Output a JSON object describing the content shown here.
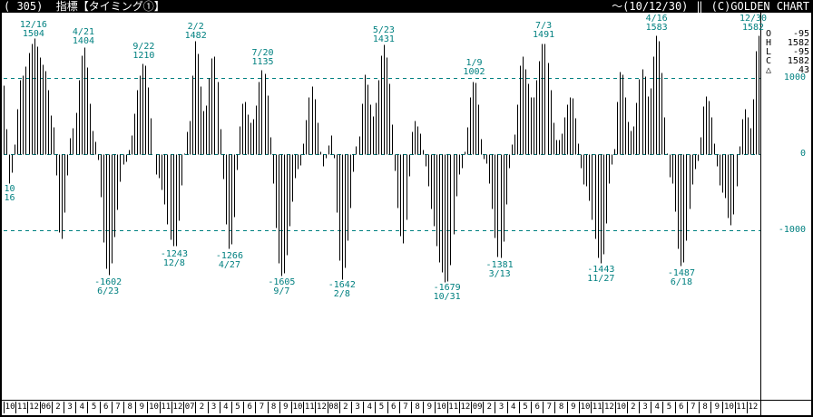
{
  "colors": {
    "accent": "#008080",
    "bars": "#000000",
    "background": "#ffffff",
    "titlebar_bg": "#000000",
    "titlebar_fg": "#ffffff"
  },
  "titlebar": {
    "left": "( 305)  指標【タイミング①】",
    "range": "～(10/12/30)",
    "separator": "‖",
    "copyright": "(C)GOLDEN CHART"
  },
  "legend": {
    "rows": [
      {
        "label": "O",
        "value": "-95"
      },
      {
        "label": "H",
        "value": "1582"
      },
      {
        "label": "L",
        "value": "-95"
      },
      {
        "label": "C",
        "value": "1582"
      },
      {
        "label": "△",
        "value": "43"
      }
    ]
  },
  "y_axis": {
    "labels": [
      {
        "text": "1000",
        "value": 1000
      },
      {
        "text": "0",
        "value": 0
      },
      {
        "text": "-1000",
        "value": -1000
      }
    ]
  },
  "x_axis": {
    "months": [
      "10",
      "11",
      "12",
      "06",
      "2",
      "3",
      "4",
      "5",
      "6",
      "7",
      "8",
      "9",
      "10",
      "11",
      "12",
      "07",
      "2",
      "3",
      "4",
      "5",
      "6",
      "7",
      "8",
      "9",
      "10",
      "11",
      "12",
      "08",
      "2",
      "3",
      "4",
      "5",
      "6",
      "7",
      "8",
      "9",
      "10",
      "11",
      "12",
      "09",
      "2",
      "3",
      "4",
      "5",
      "6",
      "7",
      "8",
      "9",
      "10",
      "11",
      "12",
      "10",
      "2",
      "3",
      "4",
      "5",
      "6",
      "7",
      "8",
      "9",
      "10",
      "11",
      "12"
    ]
  },
  "chart_data": {
    "type": "bar",
    "title": "指標【タイミング①】",
    "period_label": "～(10/12/30)",
    "x_start": "2005-10",
    "x_end": "2010-12",
    "ylim": [
      -3200,
      1850
    ],
    "gridlines": [
      1000,
      0,
      -1000
    ],
    "grid_style": "dashed",
    "legend_position": "right",
    "t_unit": "months since 2005-10-01",
    "bar_count": 273,
    "peaks": [
      {
        "date": "12/16",
        "value": 1504,
        "t": 2.49
      },
      {
        "date": "4/21",
        "value": 1404,
        "t": 6.66
      },
      {
        "date": "9/22",
        "value": 1210,
        "t": 11.69
      },
      {
        "date": "2/2",
        "value": 1482,
        "t": 16.03
      },
      {
        "date": "7/20",
        "value": 1135,
        "t": 21.62
      },
      {
        "date": "5/23",
        "value": 1431,
        "t": 31.72
      },
      {
        "date": "1/9",
        "value": 1002,
        "t": 39.26
      },
      {
        "date": "7/3",
        "value": 1491,
        "t": 45.06
      },
      {
        "date": "4/16",
        "value": 1583,
        "t": 54.49
      },
      {
        "date": "12/30",
        "value": 1582,
        "t": 62.95
      }
    ],
    "troughs": [
      {
        "date": "10/16",
        "value": -380,
        "t": 0.49,
        "value_hidden": true
      },
      {
        "date": "6/23",
        "value": -1602,
        "t": 8.72
      },
      {
        "date": "12/8",
        "value": -1243,
        "t": 14.23
      },
      {
        "date": "4/27",
        "value": -1266,
        "t": 18.85
      },
      {
        "date": "9/7",
        "value": -1605,
        "t": 23.2
      },
      {
        "date": "2/8",
        "value": -1642,
        "t": 28.23
      },
      {
        "date": "10/31",
        "value": -1679,
        "t": 37
      },
      {
        "date": "3/13",
        "value": -1381,
        "t": 41.39
      },
      {
        "date": "11/27",
        "value": -1443,
        "t": 49.85
      },
      {
        "date": "6/18",
        "value": -1487,
        "t": 56.56
      }
    ],
    "control_points": [
      {
        "t": 0,
        "v": 900
      },
      {
        "t": 0.49,
        "v": -380
      },
      {
        "t": 1.56,
        "v": 1050
      },
      {
        "t": 2.49,
        "v": 1504
      },
      {
        "t": 3.39,
        "v": 1150
      },
      {
        "t": 4.07,
        "v": 450
      },
      {
        "t": 4.76,
        "v": -1150
      },
      {
        "t": 5.76,
        "v": 350
      },
      {
        "t": 6.66,
        "v": 1404
      },
      {
        "t": 7.59,
        "v": 200
      },
      {
        "t": 8.72,
        "v": -1602
      },
      {
        "t": 10.1,
        "v": -100
      },
      {
        "t": 11.69,
        "v": 1210
      },
      {
        "t": 12.85,
        "v": -300
      },
      {
        "t": 14.23,
        "v": -1243
      },
      {
        "t": 15.36,
        "v": 300
      },
      {
        "t": 16.03,
        "v": 1482
      },
      {
        "t": 16.72,
        "v": 550
      },
      {
        "t": 17.49,
        "v": 1330
      },
      {
        "t": 18.85,
        "v": -1266
      },
      {
        "t": 20,
        "v": 700
      },
      {
        "t": 20.69,
        "v": 400
      },
      {
        "t": 21.62,
        "v": 1135
      },
      {
        "t": 23.2,
        "v": -1605
      },
      {
        "t": 24.59,
        "v": -200
      },
      {
        "t": 25.72,
        "v": 880
      },
      {
        "t": 26.66,
        "v": -150
      },
      {
        "t": 27.33,
        "v": 250
      },
      {
        "t": 28.23,
        "v": -1642
      },
      {
        "t": 29.66,
        "v": 250
      },
      {
        "t": 30.1,
        "v": 1050
      },
      {
        "t": 30.79,
        "v": 520
      },
      {
        "t": 31.72,
        "v": 1431
      },
      {
        "t": 33.33,
        "v": -1160
      },
      {
        "t": 34.23,
        "v": 430
      },
      {
        "t": 37,
        "v": -1679
      },
      {
        "t": 38.13,
        "v": -200
      },
      {
        "t": 39.26,
        "v": 1002
      },
      {
        "t": 40.16,
        "v": -100
      },
      {
        "t": 41.39,
        "v": -1381
      },
      {
        "t": 42.53,
        "v": 200
      },
      {
        "t": 43.23,
        "v": 1290
      },
      {
        "t": 44.13,
        "v": 720
      },
      {
        "t": 45.06,
        "v": 1491
      },
      {
        "t": 46.2,
        "v": 150
      },
      {
        "t": 47.33,
        "v": 780
      },
      {
        "t": 48.49,
        "v": -400
      },
      {
        "t": 49.85,
        "v": -1443
      },
      {
        "t": 50.79,
        "v": -100
      },
      {
        "t": 51.46,
        "v": 1120
      },
      {
        "t": 52.36,
        "v": 280
      },
      {
        "t": 53.3,
        "v": 1150
      },
      {
        "t": 53.8,
        "v": 750
      },
      {
        "t": 54.49,
        "v": 1583
      },
      {
        "t": 55.66,
        "v": -300
      },
      {
        "t": 56.56,
        "v": -1487
      },
      {
        "t": 57.72,
        "v": -200
      },
      {
        "t": 58.62,
        "v": 780
      },
      {
        "t": 60,
        "v": -500
      },
      {
        "t": 60.69,
        "v": -930
      },
      {
        "t": 61.82,
        "v": 600
      },
      {
        "t": 62.3,
        "v": 350
      },
      {
        "t": 62.95,
        "v": 1582
      }
    ]
  }
}
